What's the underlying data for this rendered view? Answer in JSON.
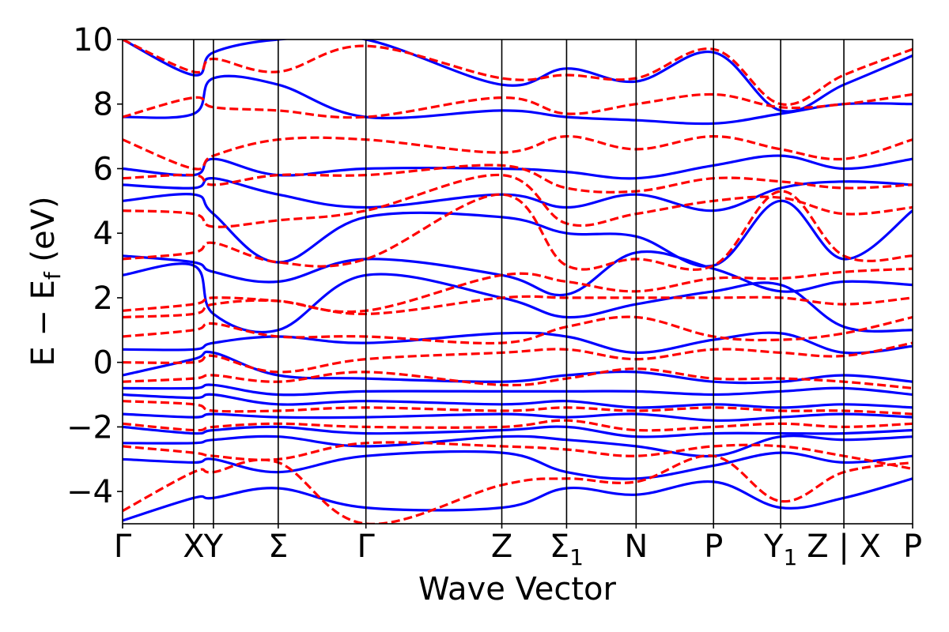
{
  "chart_data": {
    "type": "line",
    "title": "",
    "xlabel": "Wave Vector",
    "ylabel_parts": {
      "main": "E − E",
      "subscript": "f",
      "unit": " (eV)"
    },
    "ylim": [
      -5,
      10
    ],
    "yticks": [
      -4,
      -2,
      0,
      2,
      4,
      6,
      8,
      10
    ],
    "ytick_labels": [
      "−4",
      "−2",
      "0",
      "2",
      "4",
      "6",
      "8",
      "10"
    ],
    "grid": false,
    "legend": "none",
    "k_points": [
      {
        "label": "Γ",
        "k": 0.0
      },
      {
        "label": "X",
        "k": 0.9
      },
      {
        "label": "Y",
        "k": 1.15
      },
      {
        "label": "Σ",
        "k": 1.97
      },
      {
        "label": "Γ",
        "k": 3.08
      },
      {
        "label": "Z",
        "k": 4.8
      },
      {
        "label": "Σ",
        "sub": "1",
        "k": 5.62
      },
      {
        "label": "N",
        "k": 6.5
      },
      {
        "label": "P",
        "k": 7.48
      },
      {
        "label": "Y",
        "sub": "1",
        "k": 8.33
      },
      {
        "label": "Z | X",
        "k": 9.13
      },
      {
        "label": "P",
        "k": 10.0
      }
    ],
    "x_range": [
      0,
      10.0
    ],
    "series": [
      {
        "style": "solid",
        "color": "#0000ff",
        "bands": [
          {
            "k": [
              0,
              0.9,
              1.15,
              1.97,
              3.08,
              4.8,
              5.62,
              6.5,
              7.48,
              8.33,
              9.13,
              10.0
            ],
            "E": [
              -4.9,
              -4.2,
              -4.2,
              -3.9,
              -4.5,
              -4.5,
              -3.9,
              -4.1,
              -3.7,
              -4.5,
              -4.2,
              -3.6
            ]
          },
          {
            "k": [
              0,
              0.9,
              1.15,
              1.97,
              3.08,
              4.8,
              5.62,
              6.5,
              7.48,
              8.33,
              9.13,
              10.0
            ],
            "E": [
              -3.0,
              -3.1,
              -3.0,
              -3.4,
              -2.9,
              -2.8,
              -3.4,
              -3.6,
              -3.2,
              -2.8,
              -3.1,
              -2.9
            ]
          },
          {
            "k": [
              0,
              0.9,
              1.15,
              1.97,
              3.08,
              4.8,
              5.62,
              6.5,
              7.48,
              8.33,
              9.13,
              10.0
            ],
            "E": [
              -2.5,
              -2.5,
              -2.4,
              -2.3,
              -2.6,
              -2.3,
              -2.4,
              -2.6,
              -2.9,
              -2.3,
              -2.4,
              -2.3
            ]
          },
          {
            "k": [
              0,
              0.9,
              1.15,
              1.97,
              3.08,
              4.8,
              5.62,
              6.5,
              7.48,
              8.33,
              9.13,
              10.0
            ],
            "E": [
              -2.0,
              -2.2,
              -2.1,
              -2.0,
              -2.2,
              -2.1,
              -2.0,
              -2.3,
              -2.2,
              -2.2,
              -2.2,
              -2.1
            ]
          },
          {
            "k": [
              0,
              0.9,
              1.15,
              1.97,
              3.08,
              4.8,
              5.62,
              6.5,
              7.48,
              8.33,
              9.13,
              10.0
            ],
            "E": [
              -1.6,
              -1.7,
              -1.6,
              -1.7,
              -1.7,
              -1.6,
              -1.7,
              -1.6,
              -1.8,
              -1.7,
              -1.6,
              -1.7
            ]
          },
          {
            "k": [
              0,
              0.9,
              1.15,
              1.97,
              3.08,
              4.8,
              5.62,
              6.5,
              7.48,
              8.33,
              9.13,
              10.0
            ],
            "E": [
              -1.0,
              -1.1,
              -1.0,
              -1.3,
              -1.2,
              -1.3,
              -1.2,
              -1.4,
              -1.3,
              -1.4,
              -1.3,
              -1.4
            ]
          },
          {
            "k": [
              0,
              0.9,
              1.15,
              1.97,
              3.08,
              4.8,
              5.62,
              6.5,
              7.48,
              8.33,
              9.13,
              10.0
            ],
            "E": [
              -0.8,
              -0.8,
              -0.7,
              -1.0,
              -0.9,
              -0.9,
              -0.9,
              -0.9,
              -1.0,
              -0.9,
              -0.8,
              -1.0
            ]
          },
          {
            "k": [
              0,
              0.9,
              1.15,
              1.97,
              3.08,
              4.8,
              5.62,
              6.5,
              7.48,
              8.33,
              9.13,
              10.0
            ],
            "E": [
              -0.4,
              0.1,
              0.3,
              -0.4,
              -0.5,
              -0.6,
              -0.4,
              -0.3,
              -0.6,
              -0.6,
              -0.4,
              -0.6
            ]
          },
          {
            "k": [
              0,
              0.9,
              1.15,
              1.97,
              3.08,
              4.8,
              5.62,
              6.5,
              7.48,
              8.33,
              9.13,
              10.0
            ],
            "E": [
              0.4,
              0.4,
              0.6,
              0.8,
              0.6,
              0.9,
              0.8,
              0.3,
              0.7,
              0.9,
              0.3,
              0.5
            ]
          },
          {
            "k": [
              0,
              0.9,
              1.15,
              1.97,
              3.08,
              4.8,
              5.62,
              6.5,
              7.48,
              8.33,
              9.13,
              10.0
            ],
            "E": [
              2.7,
              3.0,
              1.5,
              1.0,
              2.7,
              2.0,
              1.4,
              1.8,
              2.2,
              2.4,
              1.1,
              1.0
            ]
          },
          {
            "k": [
              0,
              0.9,
              1.15,
              1.97,
              3.08,
              4.8,
              5.62,
              6.5,
              7.48,
              8.33,
              9.13,
              10.0
            ],
            "E": [
              3.3,
              3.1,
              2.8,
              2.5,
              3.2,
              2.7,
              2.1,
              3.4,
              2.9,
              2.2,
              2.5,
              2.4
            ]
          },
          {
            "k": [
              0,
              0.9,
              1.15,
              1.97,
              3.08,
              4.8,
              5.62,
              6.5,
              7.48,
              8.33,
              9.13,
              10.0
            ],
            "E": [
              5.0,
              5.2,
              4.6,
              3.1,
              4.5,
              4.5,
              4.0,
              3.9,
              3.0,
              5.0,
              3.2,
              4.7
            ]
          },
          {
            "k": [
              0,
              0.9,
              1.15,
              1.97,
              3.08,
              4.8,
              5.62,
              6.5,
              7.48,
              8.33,
              9.13,
              10.0
            ],
            "E": [
              5.5,
              5.4,
              5.7,
              5.2,
              4.8,
              5.2,
              4.8,
              5.2,
              4.7,
              5.4,
              5.6,
              5.5
            ]
          },
          {
            "k": [
              0,
              0.9,
              1.15,
              1.97,
              3.08,
              4.8,
              5.62,
              6.5,
              7.48,
              8.33,
              9.13,
              10.0
            ],
            "E": [
              6.0,
              5.8,
              6.3,
              5.8,
              6.0,
              6.0,
              5.9,
              5.7,
              6.1,
              6.4,
              6.0,
              6.3
            ]
          },
          {
            "k": [
              0,
              0.9,
              1.15,
              1.97,
              3.08,
              4.8,
              5.62,
              6.5,
              7.48,
              8.33,
              9.13,
              10.0
            ],
            "E": [
              7.6,
              7.7,
              8.8,
              8.6,
              7.6,
              7.8,
              7.6,
              7.5,
              7.4,
              7.7,
              8.0,
              8.0
            ]
          },
          {
            "k": [
              0,
              0.9,
              1.15,
              1.97,
              3.08,
              4.8,
              5.62,
              6.5,
              7.48,
              8.33,
              9.13,
              10.0
            ],
            "E": [
              10.0,
              8.9,
              9.6,
              10.0,
              10.0,
              8.6,
              9.1,
              8.7,
              9.6,
              7.8,
              8.6,
              9.5
            ]
          }
        ]
      },
      {
        "style": "dashed",
        "color": "#ff0000",
        "bands": [
          {
            "k": [
              0,
              0.9,
              1.15,
              1.97,
              3.08,
              4.8,
              5.62,
              6.5,
              7.48,
              8.33,
              9.13,
              10.0
            ],
            "E": [
              -4.6,
              -3.4,
              -3.4,
              -3.1,
              -5.0,
              -3.8,
              -3.6,
              -3.7,
              -2.9,
              -4.3,
              -3.4,
              -3.1
            ]
          },
          {
            "k": [
              0,
              0.9,
              1.15,
              1.97,
              3.08,
              4.8,
              5.62,
              6.5,
              7.48,
              8.33,
              9.13,
              10.0
            ],
            "E": [
              -2.6,
              -2.8,
              -2.9,
              -3.0,
              -2.5,
              -2.6,
              -2.7,
              -2.9,
              -2.6,
              -2.6,
              -2.9,
              -3.3
            ]
          },
          {
            "k": [
              0,
              0.9,
              1.15,
              1.97,
              3.08,
              4.8,
              5.62,
              6.5,
              7.48,
              8.33,
              9.13,
              10.0
            ],
            "E": [
              -1.9,
              -2.1,
              -2.0,
              -1.9,
              -2.0,
              -2.0,
              -1.8,
              -2.1,
              -2.0,
              -1.9,
              -2.0,
              -1.9
            ]
          },
          {
            "k": [
              0,
              0.9,
              1.15,
              1.97,
              3.08,
              4.8,
              5.62,
              6.5,
              7.48,
              8.33,
              9.13,
              10.0
            ],
            "E": [
              -1.2,
              -1.3,
              -1.5,
              -1.5,
              -1.4,
              -1.5,
              -1.4,
              -1.5,
              -1.4,
              -1.5,
              -1.5,
              -1.6
            ]
          },
          {
            "k": [
              0,
              0.9,
              1.15,
              1.97,
              3.08,
              4.8,
              5.62,
              6.5,
              7.48,
              8.33,
              9.13,
              10.0
            ],
            "E": [
              -0.6,
              -0.5,
              -0.4,
              -0.6,
              -0.3,
              -0.7,
              -0.5,
              -0.2,
              -0.5,
              -0.5,
              -0.6,
              -0.8
            ]
          },
          {
            "k": [
              0,
              0.9,
              1.15,
              1.97,
              3.08,
              4.8,
              5.62,
              6.5,
              7.48,
              8.33,
              9.13,
              10.0
            ],
            "E": [
              0.0,
              0.0,
              0.2,
              -0.3,
              0.1,
              0.3,
              0.4,
              0.1,
              0.4,
              0.3,
              0.2,
              0.6
            ]
          },
          {
            "k": [
              0,
              0.9,
              1.15,
              1.97,
              3.08,
              4.8,
              5.62,
              6.5,
              7.48,
              8.33,
              9.13,
              10.0
            ],
            "E": [
              0.8,
              1.0,
              1.2,
              0.8,
              0.8,
              0.6,
              1.1,
              1.4,
              0.8,
              0.7,
              0.9,
              1.4
            ]
          },
          {
            "k": [
              0,
              0.9,
              1.15,
              1.97,
              3.08,
              4.8,
              5.62,
              6.5,
              7.48,
              8.33,
              9.13,
              10.0
            ],
            "E": [
              1.4,
              1.5,
              1.8,
              1.9,
              1.5,
              2.0,
              2.0,
              2.0,
              2.0,
              2.0,
              1.8,
              2.0
            ]
          },
          {
            "k": [
              0,
              0.9,
              1.15,
              1.97,
              3.08,
              4.8,
              5.62,
              6.5,
              7.48,
              8.33,
              9.13,
              10.0
            ],
            "E": [
              1.6,
              1.8,
              2.0,
              1.9,
              1.6,
              2.7,
              2.5,
              2.2,
              2.6,
              2.6,
              2.8,
              2.9
            ]
          },
          {
            "k": [
              0,
              0.9,
              1.15,
              1.97,
              3.08,
              4.8,
              5.62,
              6.5,
              7.48,
              8.33,
              9.13,
              10.0
            ],
            "E": [
              3.2,
              3.4,
              3.7,
              3.1,
              3.2,
              5.2,
              3.0,
              3.2,
              3.0,
              5.3,
              3.3,
              3.3
            ]
          },
          {
            "k": [
              0,
              0.9,
              1.15,
              1.97,
              3.08,
              4.8,
              5.62,
              6.5,
              7.48,
              8.33,
              9.13,
              10.0
            ],
            "E": [
              4.7,
              4.6,
              4.2,
              4.4,
              4.7,
              5.8,
              4.3,
              4.6,
              5.0,
              5.1,
              4.6,
              4.8
            ]
          },
          {
            "k": [
              0,
              0.9,
              1.15,
              1.97,
              3.08,
              4.8,
              5.62,
              6.5,
              7.48,
              8.33,
              9.13,
              10.0
            ],
            "E": [
              5.7,
              5.8,
              5.5,
              5.8,
              5.8,
              6.1,
              5.4,
              5.3,
              5.7,
              5.6,
              5.4,
              5.5
            ]
          },
          {
            "k": [
              0,
              0.9,
              1.15,
              1.97,
              3.08,
              4.8,
              5.62,
              6.5,
              7.48,
              8.33,
              9.13,
              10.0
            ],
            "E": [
              6.9,
              6.0,
              6.4,
              6.9,
              6.9,
              6.5,
              7.0,
              6.6,
              7.0,
              6.6,
              6.3,
              6.9
            ]
          },
          {
            "k": [
              0,
              0.9,
              1.15,
              1.97,
              3.08,
              4.8,
              5.62,
              6.5,
              7.48,
              8.33,
              9.13,
              10.0
            ],
            "E": [
              7.6,
              8.2,
              7.9,
              7.8,
              7.6,
              8.2,
              7.7,
              8.0,
              8.3,
              7.9,
              8.0,
              8.3
            ]
          },
          {
            "k": [
              0,
              0.9,
              1.15,
              1.97,
              3.08,
              4.8,
              5.62,
              6.5,
              7.48,
              8.33,
              9.13,
              10.0
            ],
            "E": [
              10.0,
              9.0,
              9.4,
              9.0,
              9.8,
              8.8,
              8.9,
              8.8,
              9.7,
              8.0,
              8.9,
              9.7
            ]
          }
        ]
      }
    ]
  }
}
